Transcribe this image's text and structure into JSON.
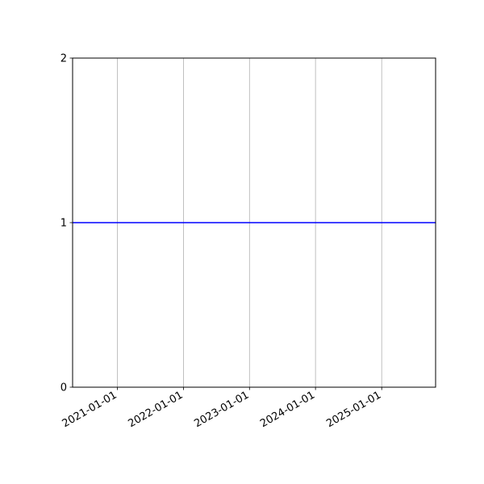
{
  "chart_data": {
    "type": "line",
    "title": "",
    "xlabel": "",
    "ylabel": "",
    "x_axis_type": "date",
    "xlim": [
      "2020-04-28",
      "2025-10-26"
    ],
    "ylim": [
      0,
      2
    ],
    "x_ticks": [
      "2021-01-01",
      "2022-01-01",
      "2023-01-01",
      "2024-01-01",
      "2025-01-01"
    ],
    "x_tick_labels": [
      "2021-01-01",
      "2022-01-01",
      "2023-01-01",
      "2024-01-01",
      "2025-01-01"
    ],
    "y_ticks": [
      0,
      1,
      2
    ],
    "y_tick_labels": [
      "0",
      "1",
      "2"
    ],
    "grid": {
      "x": true,
      "y": false,
      "color": "#b0b0b0"
    },
    "series": [
      {
        "x": [
          "2020-04-28",
          "2025-10-26"
        ],
        "y": [
          1,
          1
        ],
        "color": "#0000ff",
        "kind": "horizontal-line"
      }
    ]
  }
}
